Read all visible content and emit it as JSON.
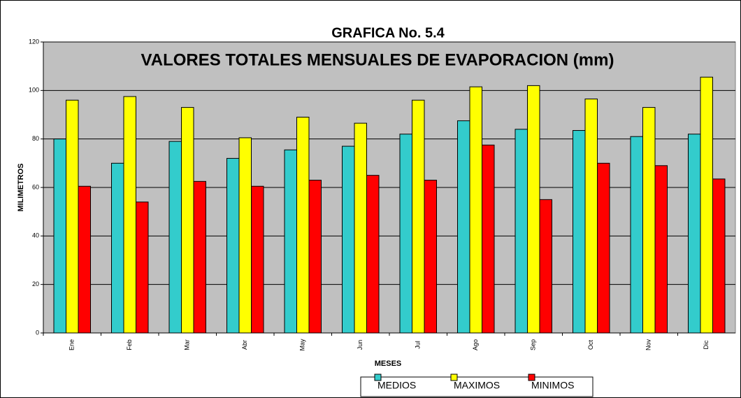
{
  "chart_data": {
    "type": "bar",
    "title": "GRAFICA No. 5.4",
    "subtitle": "VALORES TOTALES MENSUALES DE EVAPORACION (mm)",
    "x_label": "MESES",
    "y_label": "MILIMETROS",
    "categories": [
      "Ene",
      "Feb",
      "Mar",
      "Abr",
      "May",
      "Jun",
      "Jul",
      "Ago",
      "Sep",
      "Oct",
      "Nov",
      "Dic"
    ],
    "series": [
      {
        "name": "MEDIOS",
        "color": "#33cccc",
        "values": [
          80,
          70,
          79,
          72,
          75.5,
          77,
          82,
          87.5,
          84,
          83.5,
          81,
          82
        ]
      },
      {
        "name": "MAXIMOS",
        "color": "#ffff00",
        "values": [
          96,
          97.5,
          93,
          80.5,
          89,
          86.5,
          96,
          101.5,
          102,
          96.5,
          93,
          105.5
        ]
      },
      {
        "name": "MINIMOS",
        "color": "#ff0000",
        "values": [
          60.5,
          54,
          62.5,
          60.5,
          63,
          65,
          63,
          77.5,
          55,
          70,
          69,
          63.5
        ]
      }
    ],
    "ylim": [
      0,
      120
    ],
    "yticks": [
      0,
      20,
      40,
      60,
      80,
      100,
      120
    ],
    "grid": true
  }
}
